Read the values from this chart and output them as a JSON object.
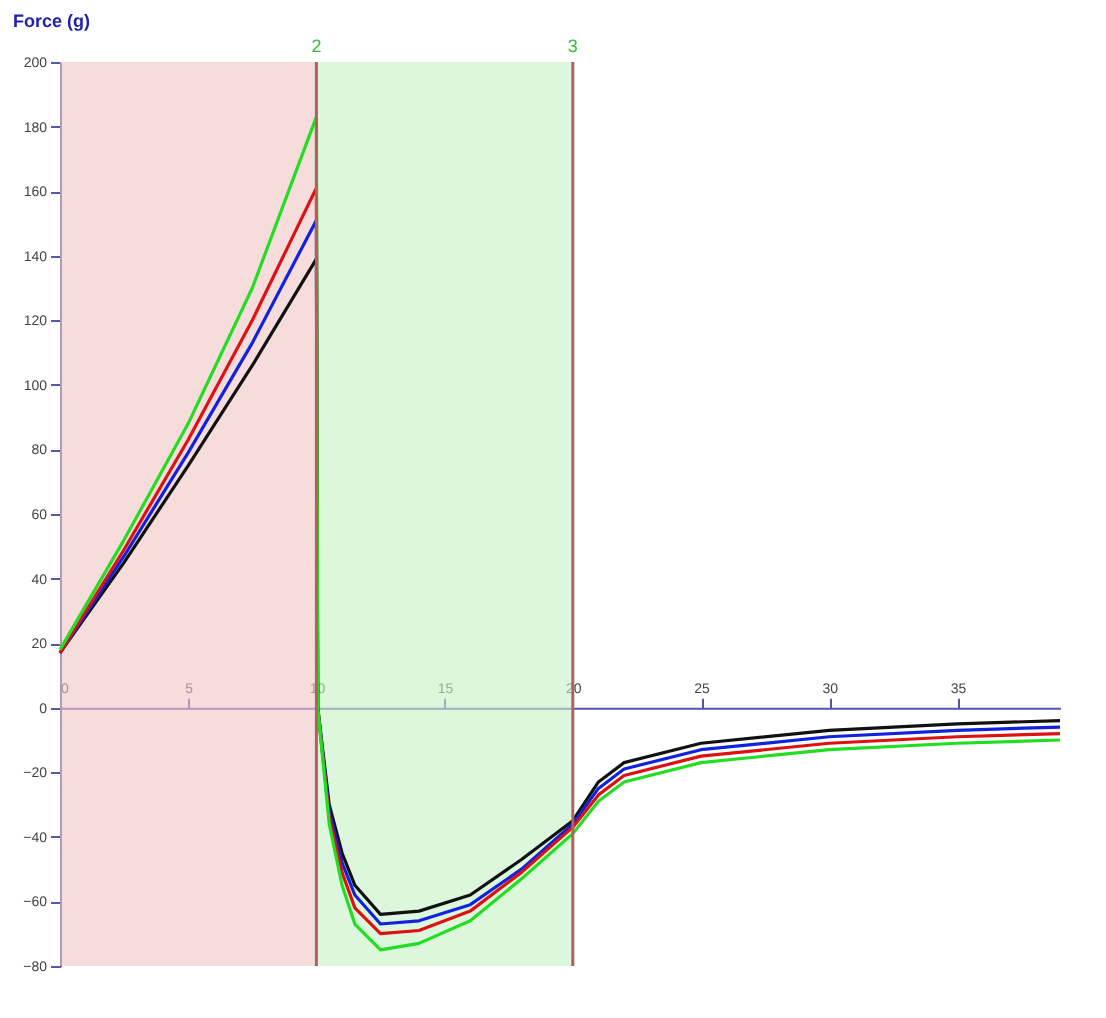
{
  "chart_data": {
    "type": "line",
    "ylabel": "Force (g)",
    "x": [
      0,
      2.5,
      5,
      7.5,
      10,
      10.05,
      10.5,
      11,
      11.5,
      12.5,
      14,
      16,
      18,
      20,
      21,
      22,
      25,
      30,
      35,
      39
    ],
    "series": [
      {
        "color": "#111111",
        "values": [
          17,
          45,
          75,
          106,
          139,
          0,
          -30,
          -45,
          -55,
          -64,
          -63,
          -58,
          -47,
          -35,
          -23,
          -17,
          -11,
          -7,
          -5,
          -4
        ]
      },
      {
        "color": "#1122dd",
        "values": [
          17,
          47,
          79,
          113,
          151,
          0,
          -32,
          -48,
          -58,
          -67,
          -66,
          -61,
          -50,
          -36,
          -25,
          -19,
          -13,
          -9,
          -7,
          -6
        ]
      },
      {
        "color": "#dd1111",
        "values": [
          17,
          49,
          83,
          120,
          161,
          0,
          -34,
          -51,
          -62,
          -70,
          -69,
          -63,
          -51,
          -37,
          -27,
          -21,
          -15,
          -11,
          -9,
          -8
        ]
      },
      {
        "color": "#22dd22",
        "values": [
          18,
          52,
          88,
          130,
          183,
          0,
          -36,
          -55,
          -67,
          -75,
          -73,
          -66,
          -53,
          -39,
          -29,
          -23,
          -17,
          -13,
          -11,
          -10
        ]
      }
    ],
    "annotations": [
      {
        "text": "2",
        "x": 10,
        "y": 200
      },
      {
        "text": "3",
        "x": 20,
        "y": 200
      }
    ],
    "xlim": [
      0,
      39
    ],
    "ylim": [
      -80,
      200
    ],
    "xticks": [
      0,
      5,
      10,
      15,
      20,
      25,
      30,
      35
    ],
    "yticks": [
      -80,
      -60,
      -40,
      -20,
      0,
      20,
      40,
      60,
      80,
      100,
      120,
      140,
      160,
      180,
      200
    ],
    "ref_lines": [
      {
        "axis": "x",
        "value": 10,
        "color": "#b06060"
      },
      {
        "axis": "x",
        "value": 20,
        "color": "#b06060"
      }
    ],
    "bands": [
      {
        "axis": "x",
        "from": 0,
        "to": 10,
        "color": "#f2c4c4"
      },
      {
        "axis": "x",
        "from": 10,
        "to": 20,
        "color": "#c4f2c4"
      }
    ],
    "grid": false,
    "marker": "none",
    "line_style": "solid"
  }
}
